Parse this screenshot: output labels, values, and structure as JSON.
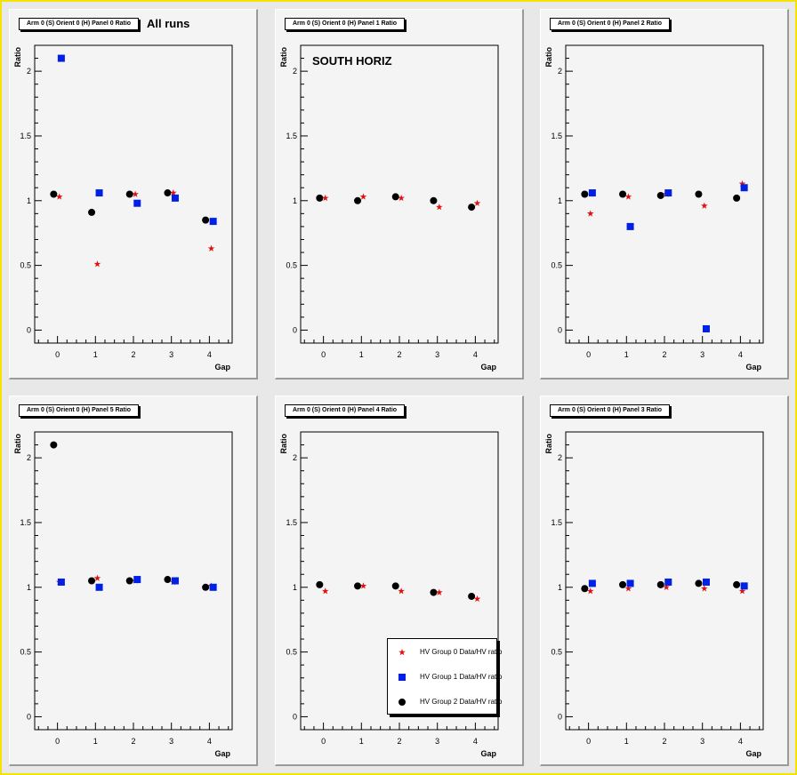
{
  "chart_data": [
    {
      "type": "scatter",
      "title": "Arm 0 (S) Orient 0 (H) Panel 0 Ratio",
      "annotation": "All runs",
      "xlabel": "Gap",
      "ylabel": "Ratio",
      "xlim": [
        -0.6,
        4.6
      ],
      "ylim": [
        -0.1,
        2.2
      ],
      "xticks": [
        0,
        1,
        2,
        3,
        4
      ],
      "yticks": [
        0,
        0.5,
        1,
        1.5,
        2
      ],
      "ytick_labels": [
        "0",
        "0.5",
        "1",
        "1.5",
        "2"
      ],
      "series": [
        {
          "name": "HV Group 0 Data/HV ratio",
          "x": [
            0,
            1,
            2,
            3,
            4
          ],
          "y": [
            1.03,
            0.51,
            1.05,
            1.06,
            0.63
          ]
        },
        {
          "name": "HV Group 1 Data/HV ratio",
          "x": [
            0,
            1,
            2,
            3,
            4
          ],
          "y": [
            2.1,
            1.06,
            0.98,
            1.02,
            0.84
          ]
        },
        {
          "name": "HV Group 2 Data/HV ratio",
          "x": [
            0,
            1,
            2,
            3,
            4
          ],
          "y": [
            1.05,
            0.91,
            1.05,
            1.06,
            0.85
          ]
        }
      ]
    },
    {
      "type": "scatter",
      "title": "Arm 0 (S) Orient 0 (H) Panel 1 Ratio",
      "annotation": "SOUTH HORIZ",
      "xlabel": "Gap",
      "ylabel": "Ratio",
      "xlim": [
        -0.6,
        4.6
      ],
      "ylim": [
        -0.1,
        2.2
      ],
      "xticks": [
        0,
        1,
        2,
        3,
        4
      ],
      "yticks": [
        0,
        0.5,
        1,
        1.5,
        2
      ],
      "ytick_labels": [
        "0",
        "0.5",
        "1",
        "1.5",
        "2"
      ],
      "series": [
        {
          "name": "HV Group 0 Data/HV ratio",
          "x": [
            0,
            1,
            2,
            3,
            4
          ],
          "y": [
            1.02,
            1.03,
            1.02,
            0.95,
            0.98
          ]
        },
        {
          "name": "HV Group 2 Data/HV ratio",
          "x": [
            0,
            1,
            2,
            3,
            4
          ],
          "y": [
            1.02,
            1.0,
            1.03,
            1.0,
            0.95
          ]
        }
      ]
    },
    {
      "type": "scatter",
      "title": "Arm 0 (S) Orient 0 (H) Panel 2 Ratio",
      "annotation": "",
      "xlabel": "Gap",
      "ylabel": "Ratio",
      "xlim": [
        -0.6,
        4.6
      ],
      "ylim": [
        -0.1,
        2.2
      ],
      "xticks": [
        0,
        1,
        2,
        3,
        4
      ],
      "yticks": [
        0,
        0.5,
        1,
        1.5,
        2
      ],
      "ytick_labels": [
        "0",
        "0.5",
        "1",
        "1.5",
        "2"
      ],
      "series": [
        {
          "name": "HV Group 0 Data/HV ratio",
          "x": [
            0,
            1,
            2,
            3,
            4
          ],
          "y": [
            0.9,
            1.03,
            1.05,
            0.96,
            1.13
          ]
        },
        {
          "name": "HV Group 1 Data/HV ratio",
          "x": [
            0,
            1,
            2,
            3,
            4
          ],
          "y": [
            1.06,
            0.8,
            1.06,
            0.01,
            1.1
          ]
        },
        {
          "name": "HV Group 2 Data/HV ratio",
          "x": [
            0,
            1,
            2,
            3,
            4
          ],
          "y": [
            1.05,
            1.05,
            1.04,
            1.05,
            1.02
          ]
        }
      ]
    },
    {
      "type": "scatter",
      "title": "Arm 0 (S) Orient 0 (H) Panel 5 Ratio",
      "annotation": "",
      "xlabel": "Gap",
      "ylabel": "Ratio",
      "xlim": [
        -0.6,
        4.6
      ],
      "ylim": [
        -0.1,
        2.2
      ],
      "xticks": [
        0,
        1,
        2,
        3,
        4
      ],
      "yticks": [
        0,
        0.5,
        1,
        1.5,
        2
      ],
      "ytick_labels": [
        "0",
        "0.5",
        "1",
        "1.5",
        "2"
      ],
      "series": [
        {
          "name": "HV Group 0 Data/HV ratio",
          "x": [
            0,
            1,
            2,
            3,
            4
          ],
          "y": [
            1.04,
            1.07,
            1.05,
            1.04,
            1.01
          ]
        },
        {
          "name": "HV Group 1 Data/HV ratio",
          "x": [
            0,
            1,
            2,
            3,
            4
          ],
          "y": [
            1.04,
            1.0,
            1.06,
            1.05,
            1.0
          ]
        },
        {
          "name": "HV Group 2 Data/HV ratio",
          "x": [
            0,
            1,
            2,
            3,
            4
          ],
          "y": [
            2.1,
            1.05,
            1.05,
            1.06,
            1.0
          ]
        }
      ]
    },
    {
      "type": "scatter",
      "title": "Arm 0 (S) Orient 0 (H) Panel 4 Ratio",
      "annotation": "",
      "xlabel": "Gap",
      "ylabel": "Ratio",
      "xlim": [
        -0.6,
        4.6
      ],
      "ylim": [
        -0.1,
        2.2
      ],
      "xticks": [
        0,
        1,
        2,
        3,
        4
      ],
      "yticks": [
        0,
        0.5,
        1,
        1.5,
        2
      ],
      "ytick_labels": [
        "0",
        "0.5",
        "1",
        "1.5",
        "2"
      ],
      "legend_position": "bottom-right",
      "legend": [
        "HV Group 0 Data/HV ratio",
        "HV Group 1 Data/HV ratio",
        "HV Group 2 Data/HV ratio"
      ],
      "series": [
        {
          "name": "HV Group 0 Data/HV ratio",
          "x": [
            0,
            1,
            2,
            3,
            4
          ],
          "y": [
            0.97,
            1.01,
            0.97,
            0.96,
            0.91
          ]
        },
        {
          "name": "HV Group 2 Data/HV ratio",
          "x": [
            0,
            1,
            2,
            3,
            4
          ],
          "y": [
            1.02,
            1.01,
            1.01,
            0.96,
            0.93
          ]
        }
      ]
    },
    {
      "type": "scatter",
      "title": "Arm 0 (S) Orient 0 (H) Panel 3 Ratio",
      "annotation": "",
      "xlabel": "Gap",
      "ylabel": "Ratio",
      "xlim": [
        -0.6,
        4.6
      ],
      "ylim": [
        -0.1,
        2.2
      ],
      "xticks": [
        0,
        1,
        2,
        3,
        4
      ],
      "yticks": [
        0,
        0.5,
        1,
        1.5,
        2
      ],
      "ytick_labels": [
        "0",
        "0.5",
        "1",
        "1.5",
        "2"
      ],
      "series": [
        {
          "name": "HV Group 0 Data/HV ratio",
          "x": [
            0,
            1,
            2,
            3,
            4
          ],
          "y": [
            0.97,
            0.99,
            1.0,
            0.99,
            0.97
          ]
        },
        {
          "name": "HV Group 1 Data/HV ratio",
          "x": [
            0,
            1,
            2,
            3,
            4
          ],
          "y": [
            1.03,
            1.03,
            1.04,
            1.04,
            1.01
          ]
        },
        {
          "name": "HV Group 2 Data/HV ratio",
          "x": [
            0,
            1,
            2,
            3,
            4
          ],
          "y": [
            0.99,
            1.02,
            1.02,
            1.03,
            1.02
          ]
        }
      ]
    }
  ],
  "colors": {
    "group0": "#e01010",
    "group1": "#0020e8",
    "group2": "#000000",
    "frame": "#e8e8e8",
    "pad": "#f4f4f4",
    "border": "#f5e400"
  }
}
